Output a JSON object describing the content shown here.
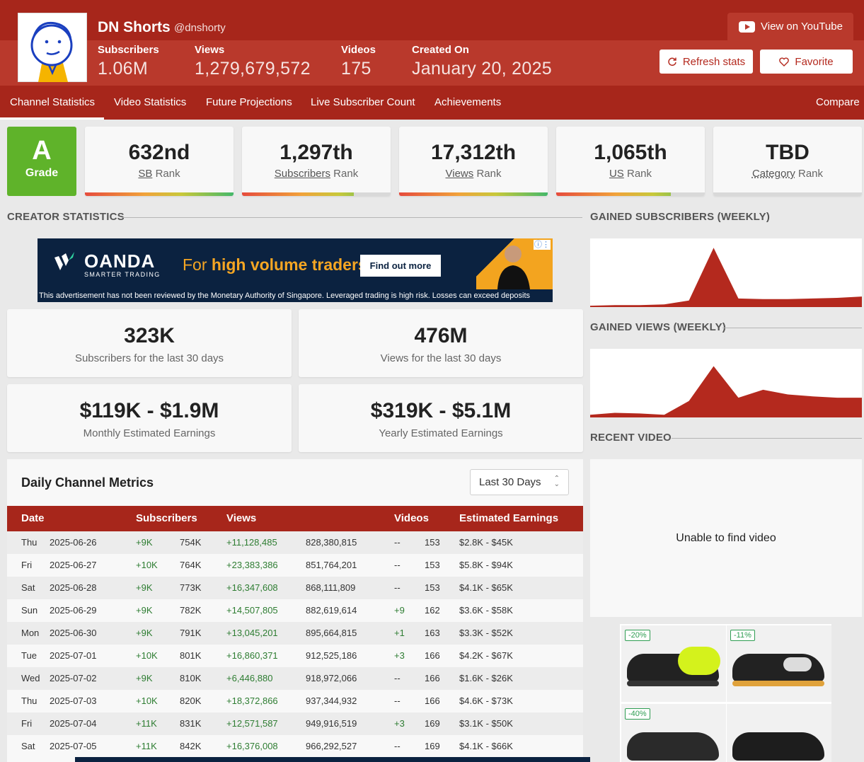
{
  "channel": {
    "name": "DN Shorts",
    "handle": "@dnshorty",
    "stats": [
      {
        "label": "Subscribers",
        "value": "1.06M"
      },
      {
        "label": "Views",
        "value": "1,279,679,572"
      },
      {
        "label": "Videos",
        "value": "175"
      },
      {
        "label": "Created On",
        "value": "January 20, 2025"
      }
    ]
  },
  "header_actions": {
    "youtube": "View on YouTube",
    "refresh": "Refresh stats",
    "favorite": "Favorite"
  },
  "nav": {
    "items": [
      "Channel Statistics",
      "Video Statistics",
      "Future Projections",
      "Live Subscriber Count",
      "Achievements"
    ],
    "compare": "Compare",
    "active_index": 0
  },
  "grade": {
    "letter": "A",
    "label": "Grade",
    "color": "#5fb32a"
  },
  "ranks": [
    {
      "value": "632nd",
      "key": "SB",
      "suffix": "Rank",
      "fill": 1.0
    },
    {
      "value": "1,297th",
      "key": "Subscribers",
      "suffix": "Rank",
      "fill": 0.75
    },
    {
      "value": "17,312th",
      "key": "Views",
      "suffix": "Rank",
      "fill": 1.0
    },
    {
      "value": "1,065th",
      "key": "US",
      "suffix": "Rank",
      "fill": 0.77
    },
    {
      "value": "TBD",
      "key": "Category",
      "suffix": "Rank",
      "fill": 0
    }
  ],
  "sections": {
    "creator_statistics": "CREATOR STATISTICS",
    "gained_subscribers": "GAINED SUBSCRIBERS (WEEKLY)",
    "gained_views": "GAINED VIEWS (WEEKLY)",
    "recent_video": "RECENT VIDEO"
  },
  "ad_banner": {
    "brand": "OANDA",
    "brand_sub": "SMARTER TRADING",
    "headline_prefix": "For ",
    "headline": "high volume traders",
    "cta": "Find out more",
    "disclaimer": "This advertisement has not been reviewed by the Monetary Authority of Singapore. Leveraged trading is high risk. Losses can exceed deposits"
  },
  "summary_cards": [
    {
      "value": "323K",
      "label": "Subscribers for the last 30 days"
    },
    {
      "value": "476M",
      "label": "Views for the last 30 days"
    },
    {
      "value": "$119K - $1.9M",
      "label": "Monthly Estimated Earnings"
    },
    {
      "value": "$319K - $5.1M",
      "label": "Yearly Estimated Earnings"
    }
  ],
  "daily_metrics": {
    "title": "Daily Channel Metrics",
    "range_selected": "Last 30 Days",
    "columns": [
      "Date",
      "Subscribers",
      "Views",
      "Videos",
      "Estimated Earnings"
    ],
    "rows": [
      {
        "day": "Thu",
        "date": "2025-06-26",
        "sub_gain": "+9K",
        "subs": "754K",
        "view_gain": "+11,128,485",
        "views": "828,380,815",
        "vid_gain": "--",
        "videos": "153",
        "earnings": "$2.8K - $45K"
      },
      {
        "day": "Fri",
        "date": "2025-06-27",
        "sub_gain": "+10K",
        "subs": "764K",
        "view_gain": "+23,383,386",
        "views": "851,764,201",
        "vid_gain": "--",
        "videos": "153",
        "earnings": "$5.8K - $94K"
      },
      {
        "day": "Sat",
        "date": "2025-06-28",
        "sub_gain": "+9K",
        "subs": "773K",
        "view_gain": "+16,347,608",
        "views": "868,111,809",
        "vid_gain": "--",
        "videos": "153",
        "earnings": "$4.1K - $65K"
      },
      {
        "day": "Sun",
        "date": "2025-06-29",
        "sub_gain": "+9K",
        "subs": "782K",
        "view_gain": "+14,507,805",
        "views": "882,619,614",
        "vid_gain": "+9",
        "videos": "162",
        "earnings": "$3.6K - $58K"
      },
      {
        "day": "Mon",
        "date": "2025-06-30",
        "sub_gain": "+9K",
        "subs": "791K",
        "view_gain": "+13,045,201",
        "views": "895,664,815",
        "vid_gain": "+1",
        "videos": "163",
        "earnings": "$3.3K - $52K"
      },
      {
        "day": "Tue",
        "date": "2025-07-01",
        "sub_gain": "+10K",
        "subs": "801K",
        "view_gain": "+16,860,371",
        "views": "912,525,186",
        "vid_gain": "+3",
        "videos": "166",
        "earnings": "$4.2K - $67K"
      },
      {
        "day": "Wed",
        "date": "2025-07-02",
        "sub_gain": "+9K",
        "subs": "810K",
        "view_gain": "+6,446,880",
        "views": "918,972,066",
        "vid_gain": "--",
        "videos": "166",
        "earnings": "$1.6K - $26K"
      },
      {
        "day": "Thu",
        "date": "2025-07-03",
        "sub_gain": "+10K",
        "subs": "820K",
        "view_gain": "+18,372,866",
        "views": "937,344,932",
        "vid_gain": "--",
        "videos": "166",
        "earnings": "$4.6K - $73K"
      },
      {
        "day": "Fri",
        "date": "2025-07-04",
        "sub_gain": "+11K",
        "subs": "831K",
        "view_gain": "+12,571,587",
        "views": "949,916,519",
        "vid_gain": "+3",
        "videos": "169",
        "earnings": "$3.1K - $50K"
      },
      {
        "day": "Sat",
        "date": "2025-07-05",
        "sub_gain": "+11K",
        "subs": "842K",
        "view_gain": "+16,376,008",
        "views": "966,292,527",
        "vid_gain": "--",
        "videos": "169",
        "earnings": "$4.1K - $66K"
      }
    ]
  },
  "chart_data": [
    {
      "type": "area",
      "values": [
        2,
        3,
        3,
        4,
        10,
        90,
        13,
        12,
        12,
        13,
        14,
        16
      ],
      "ylim": [
        0,
        100
      ],
      "color": "#b4291e"
    },
    {
      "type": "area",
      "values": [
        4,
        7,
        6,
        4,
        25,
        78,
        30,
        42,
        35,
        32,
        30,
        30
      ],
      "ylim": [
        0,
        100
      ],
      "color": "#b4291e"
    }
  ],
  "recent_video": {
    "message": "Unable to find video"
  },
  "shoe_ad": {
    "badges": [
      "-20%",
      "-11%",
      "-40%"
    ]
  },
  "colors": {
    "brand": "#a7261b",
    "positive": "#2e7d32"
  }
}
